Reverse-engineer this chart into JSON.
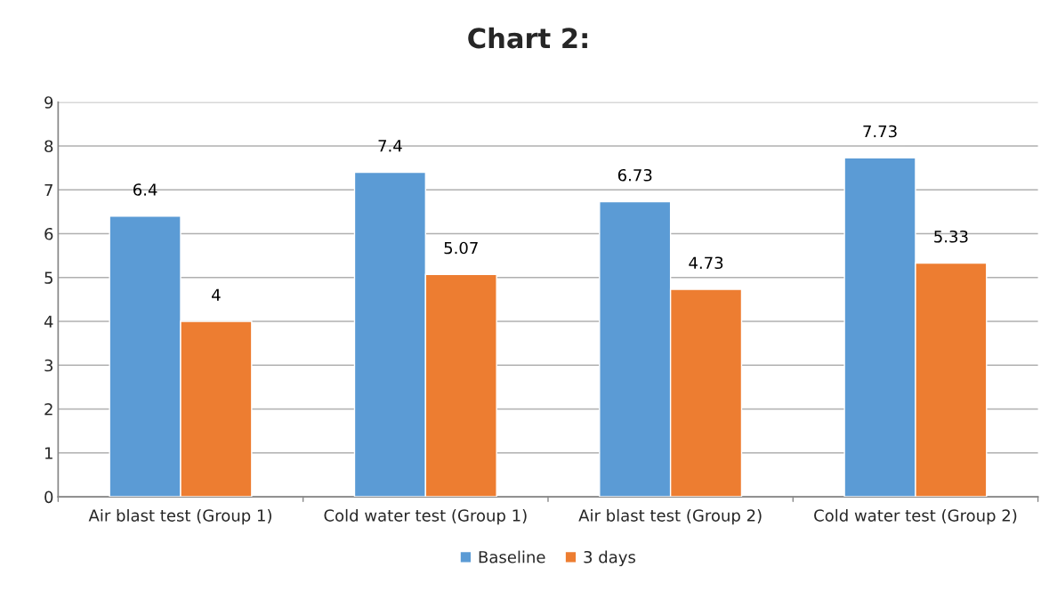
{
  "chart_data": {
    "type": "bar",
    "title": "Chart 2:",
    "categories": [
      "Air blast test (Group 1)",
      "Cold water test (Group 1)",
      "Air blast test (Group 2)",
      "Cold water test (Group 2)"
    ],
    "series": [
      {
        "name": "Baseline",
        "color": "#5b9bd5",
        "values": [
          6.4,
          7.4,
          6.73,
          7.73
        ]
      },
      {
        "name": "3 days",
        "color": "#ed7d31",
        "values": [
          4,
          5.07,
          4.73,
          5.33
        ]
      }
    ],
    "ylim": [
      0,
      9
    ],
    "yticks": [
      0,
      1,
      2,
      3,
      4,
      5,
      6,
      7,
      8,
      9
    ],
    "grid": "y",
    "legend": "bottom",
    "data_labels": true
  }
}
